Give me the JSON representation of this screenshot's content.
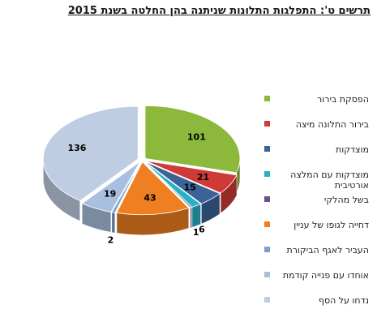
{
  "chart_data": {
    "type": "pie",
    "title": "תרשים ט': התפלגות התלונות שניתנה בהן החלטה בשנת 2015",
    "categories": [
      "הפסקת בירור",
      "בירור התלונה מיצה",
      "מוצדקות",
      "מוצדקות עם המלצה אורטיבית",
      "בשל מהלקי",
      "דחייה לגופו של עניין",
      "העביר לאגף הביקורת",
      "אוחדו עם פנייה קודמת",
      "נדחו על הסף"
    ],
    "legend_labels": [
      "הפסקת בירור",
      "בירור התלונה מיצה",
      "מוצדקות",
      [
        "מוצדקות עם המלצה",
        "אורטיבית"
      ],
      "בשל מהלקי",
      "דחייה לגופו של עניין",
      "העביר לאגף הביקורת",
      "אוחדו עם פנייה קודמת",
      "נדחו על הסף"
    ],
    "values": [
      101,
      21,
      15,
      6,
      1,
      43,
      2,
      19,
      136
    ],
    "colors": [
      "#8cb83c",
      "#cf3a38",
      "#3b6397",
      "#2bb1c5",
      "#6b4f8f",
      "#ee7f22",
      "#7da0cf",
      "#a8bfdf",
      "#bfcde3"
    ],
    "legend_placement": "right",
    "style": "3d-pie"
  }
}
